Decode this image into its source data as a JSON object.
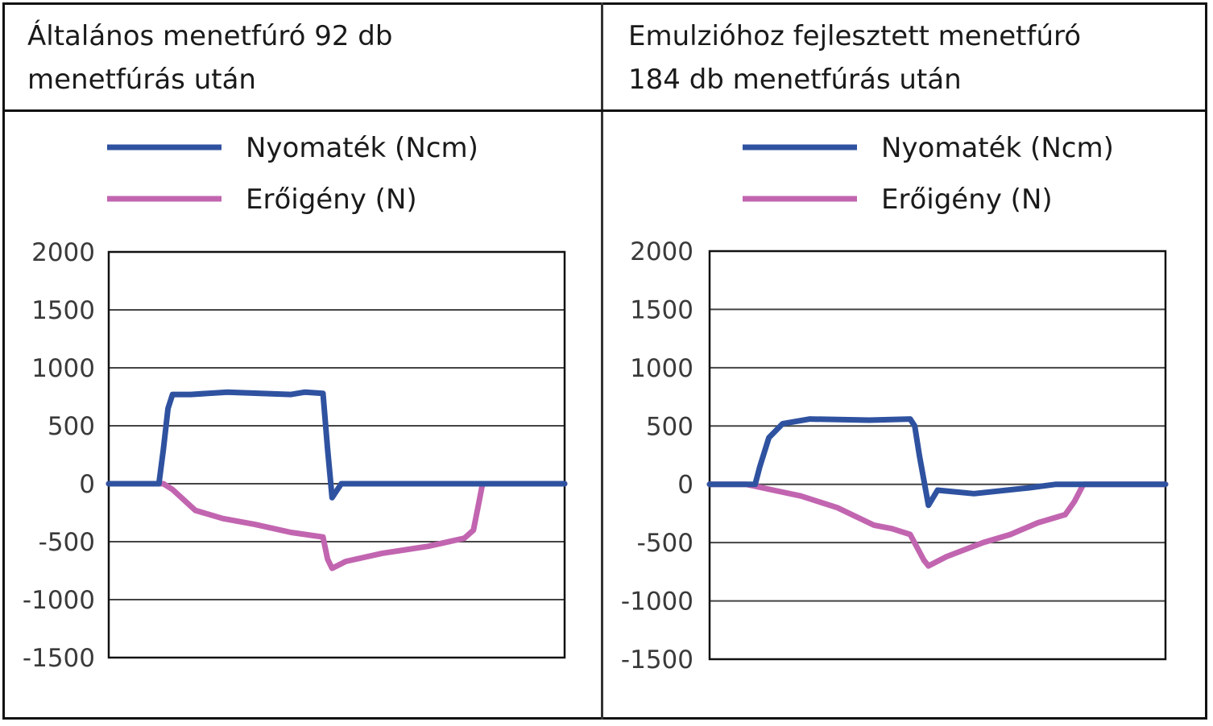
{
  "headers": [
    {
      "line1": "Általános menetfúró 92 db",
      "line2": "menetfúrás után"
    },
    {
      "line1": "Emulzióhoz fejlesztett menetfúró",
      "line2": "184 db menetfúrás után"
    }
  ],
  "colors": {
    "torque": "#2f52a0",
    "force": "#c265b0",
    "grid": "#444444",
    "border": "#111111"
  },
  "chart_data": [
    {
      "type": "line",
      "title": "Általános menetfúró 92 db menetfúrás után",
      "ylim": [
        -1500,
        2000
      ],
      "yticks": [
        "2000",
        "1500",
        "1000",
        "500",
        "0",
        "-500",
        "-1000",
        "-1500"
      ],
      "ytick_values": [
        2000,
        1500,
        1000,
        500,
        0,
        -500,
        -1000,
        -1500
      ],
      "xlim": [
        0,
        100
      ],
      "grid": true,
      "legend_position": "top",
      "series": [
        {
          "name": "Nyomaték (Ncm)",
          "points": [
            [
              0,
              0
            ],
            [
              11,
              0
            ],
            [
              12,
              300
            ],
            [
              13,
              650
            ],
            [
              14,
              770
            ],
            [
              18,
              770
            ],
            [
              26,
              790
            ],
            [
              40,
              770
            ],
            [
              43,
              790
            ],
            [
              47,
              780
            ],
            [
              48,
              300
            ],
            [
              49,
              -120
            ],
            [
              51,
              0
            ],
            [
              70,
              0
            ],
            [
              82,
              0
            ],
            [
              100,
              0
            ]
          ]
        },
        {
          "name": "Erőigény (N)",
          "points": [
            [
              0,
              0
            ],
            [
              12,
              0
            ],
            [
              14,
              -50
            ],
            [
              19,
              -230
            ],
            [
              25,
              -300
            ],
            [
              32,
              -350
            ],
            [
              40,
              -420
            ],
            [
              47,
              -460
            ],
            [
              48,
              -650
            ],
            [
              49,
              -730
            ],
            [
              52,
              -670
            ],
            [
              60,
              -600
            ],
            [
              70,
              -540
            ],
            [
              78,
              -470
            ],
            [
              80,
              -400
            ],
            [
              81,
              -200
            ],
            [
              82,
              0
            ],
            [
              100,
              0
            ]
          ]
        }
      ]
    },
    {
      "type": "line",
      "title": "Emulzióhoz fejlesztett menetfúró 184 db menetfúrás után",
      "ylim": [
        -1500,
        2000
      ],
      "yticks": [
        "2000",
        "1500",
        "1000",
        "500",
        "0",
        "-500",
        "-1000",
        "-1500"
      ],
      "ytick_values": [
        2000,
        1500,
        1000,
        500,
        0,
        -500,
        -1000,
        -1500
      ],
      "xlim": [
        0,
        100
      ],
      "grid": true,
      "legend_position": "top",
      "series": [
        {
          "name": "Nyomaték (Ncm)",
          "points": [
            [
              0,
              0
            ],
            [
              10,
              0
            ],
            [
              11,
              150
            ],
            [
              13,
              400
            ],
            [
              16,
              520
            ],
            [
              22,
              560
            ],
            [
              35,
              550
            ],
            [
              44,
              560
            ],
            [
              45,
              500
            ],
            [
              46,
              250
            ],
            [
              48,
              -180
            ],
            [
              50,
              -50
            ],
            [
              58,
              -80
            ],
            [
              70,
              -30
            ],
            [
              76,
              0
            ],
            [
              100,
              0
            ]
          ]
        },
        {
          "name": "Erőigény (N)",
          "points": [
            [
              0,
              0
            ],
            [
              8,
              0
            ],
            [
              14,
              -50
            ],
            [
              20,
              -100
            ],
            [
              28,
              -200
            ],
            [
              36,
              -350
            ],
            [
              40,
              -380
            ],
            [
              44,
              -430
            ],
            [
              47,
              -650
            ],
            [
              48,
              -700
            ],
            [
              52,
              -620
            ],
            [
              60,
              -500
            ],
            [
              66,
              -430
            ],
            [
              72,
              -330
            ],
            [
              78,
              -260
            ],
            [
              80,
              -150
            ],
            [
              82,
              0
            ],
            [
              100,
              0
            ]
          ]
        }
      ]
    }
  ]
}
